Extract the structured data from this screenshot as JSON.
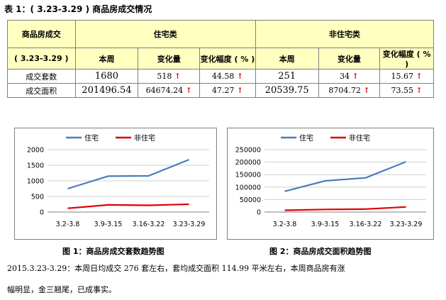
{
  "table_title": "表 1：( 3.23-3.29 ) 商品房成交情况",
  "table": {
    "corner_top": "商品房成交",
    "corner_bottom": "( 3.23-3.29 )",
    "group_residential": "住宅类",
    "group_nonresidential": "非住宅类",
    "col_week": "本周",
    "col_change": "变化量",
    "col_rate": "变化幅度 ( % )",
    "rows": [
      {
        "label": "成交套数",
        "res_week": "1680",
        "res_change": "518",
        "res_rate": "44.58",
        "non_week": "251",
        "non_change": "34",
        "non_rate": "15.67"
      },
      {
        "label": "成交面积",
        "res_week": "201496.54",
        "res_change": "64674.24",
        "res_rate": "47.27",
        "non_week": "20539.75",
        "non_change": "8704.72",
        "non_rate": "73.55"
      }
    ],
    "arrow_glyph": "↑",
    "arrow_color": "#e00000"
  },
  "chart_data": [
    {
      "type": "line",
      "categories": [
        "3.2-3.8",
        "3.9-3.15",
        "3.16-3.22",
        "3.23-3.29"
      ],
      "series": [
        {
          "name": "住宅",
          "values": [
            750,
            1150,
            1160,
            1680
          ],
          "color": "#4a7ebb"
        },
        {
          "name": "非住宅",
          "values": [
            120,
            230,
            217,
            251
          ],
          "color": "#e00000"
        }
      ],
      "ylim": [
        0,
        2000
      ],
      "yticks": [
        0,
        500,
        1000,
        1500,
        2000
      ],
      "ytick_labels": [
        "0",
        "500",
        "1000",
        "1500",
        "2000"
      ],
      "legend": "top",
      "caption": "图 1：商品房成交套数趋势图"
    },
    {
      "type": "line",
      "categories": [
        "3.2-3.8",
        "3.9-3.15",
        "3.16-3.22",
        "3.23-3.29"
      ],
      "series": [
        {
          "name": "住宅",
          "values": [
            83000,
            125000,
            137000,
            201496.54
          ],
          "color": "#4a7ebb"
        },
        {
          "name": "非住宅",
          "values": [
            7000,
            10500,
            11835,
            20539.75
          ],
          "color": "#e00000"
        }
      ],
      "ylim": [
        0,
        250000
      ],
      "yticks": [
        0,
        50000,
        100000,
        150000,
        200000,
        250000
      ],
      "ytick_labels": [
        "0",
        "50000",
        "100000",
        "150000",
        "200000",
        "250000"
      ],
      "legend": "top",
      "caption": "图 2：商品房成交面积趋势图"
    }
  ],
  "footer": {
    "line1": "2015.3.23-3.29：本周日均成交 276 套左右，套均成交面积 114.99 平米左右，本周商品房有涨",
    "line2": "幅明显，金三翘尾，已成事实。"
  }
}
